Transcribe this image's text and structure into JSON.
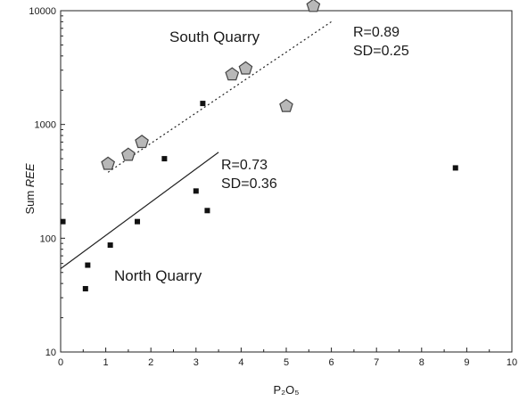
{
  "chart_data": {
    "type": "scatter",
    "xlabel": "P₂O₅",
    "ylabel_prefix": "Sum ",
    "ylabel_emph": "REE",
    "xlim": [
      0,
      10
    ],
    "ylim": [
      10,
      10000
    ],
    "yscale": "log",
    "xticks": [
      0,
      1,
      2,
      3,
      4,
      5,
      6,
      7,
      8,
      9,
      10
    ],
    "yticks": [
      10,
      100,
      1000,
      10000
    ],
    "grid": false,
    "series": [
      {
        "name": "South Quarry",
        "marker": "pentagon",
        "color": "#b8b8b8",
        "points": [
          {
            "x": 1.05,
            "y": 450
          },
          {
            "x": 1.5,
            "y": 540
          },
          {
            "x": 1.8,
            "y": 700
          },
          {
            "x": 3.8,
            "y": 2750
          },
          {
            "x": 4.1,
            "y": 3100
          },
          {
            "x": 5.0,
            "y": 1450
          },
          {
            "x": 5.6,
            "y": 11000
          }
        ],
        "fit": {
          "x": [
            1.05,
            6.0
          ],
          "y": [
            380,
            8000
          ],
          "style": "dotted"
        },
        "label": "South Quarry",
        "r_text": "R=0.89",
        "sd_text": "SD=0.25"
      },
      {
        "name": "North Quarry",
        "marker": "square",
        "color": "#111111",
        "points": [
          {
            "x": 0.05,
            "y": 140
          },
          {
            "x": 0.55,
            "y": 36
          },
          {
            "x": 0.6,
            "y": 58
          },
          {
            "x": 1.1,
            "y": 87
          },
          {
            "x": 1.7,
            "y": 140
          },
          {
            "x": 2.3,
            "y": 500
          },
          {
            "x": 3.0,
            "y": 260
          },
          {
            "x": 3.15,
            "y": 1530
          },
          {
            "x": 3.25,
            "y": 175
          },
          {
            "x": 8.75,
            "y": 415
          }
        ],
        "fit": {
          "x": [
            0.0,
            3.5
          ],
          "y": [
            54,
            570
          ],
          "style": "solid"
        },
        "label": "North Quarry",
        "r_text": "R=0.73",
        "sd_text": "SD=0.36"
      }
    ]
  }
}
